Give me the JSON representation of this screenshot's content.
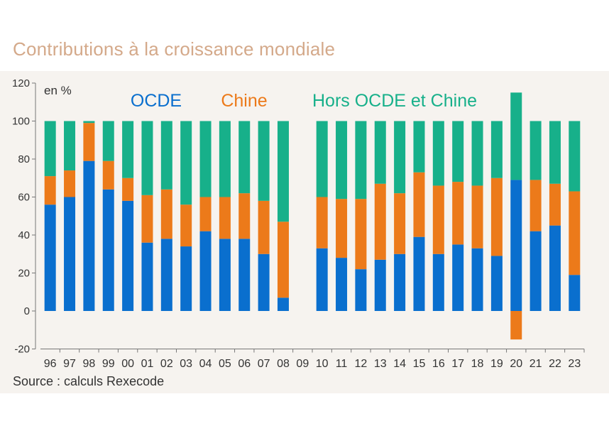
{
  "title": "Contributions à la croissance mondiale",
  "source": "Source : calculs Rexecode",
  "chart_data": {
    "type": "bar",
    "stacked": true,
    "unit_label": "en %",
    "categories": [
      "96",
      "97",
      "98",
      "99",
      "00",
      "01",
      "02",
      "03",
      "04",
      "05",
      "06",
      "07",
      "08",
      "09",
      "10",
      "11",
      "12",
      "13",
      "14",
      "15",
      "16",
      "17",
      "18",
      "19",
      "20",
      "21",
      "22",
      "23"
    ],
    "series": [
      {
        "name": "OCDE",
        "color": "#0a6fce",
        "values": [
          56,
          60,
          79,
          64,
          58,
          36,
          38,
          34,
          42,
          38,
          38,
          30,
          7,
          null,
          33,
          28,
          22,
          27,
          30,
          39,
          30,
          35,
          33,
          29,
          69,
          42,
          45,
          19
        ]
      },
      {
        "name": "Chine",
        "color": "#ec7a1a",
        "values": [
          15,
          14,
          20,
          15,
          12,
          25,
          26,
          22,
          18,
          22,
          24,
          28,
          40,
          null,
          27,
          31,
          37,
          40,
          32,
          34,
          36,
          33,
          33,
          41,
          -15,
          27,
          22,
          44
        ]
      },
      {
        "name": "Hors OCDE et Chine",
        "color": "#17b08a",
        "values": [
          29,
          26,
          1,
          21,
          30,
          39,
          36,
          44,
          40,
          40,
          38,
          42,
          53,
          null,
          40,
          41,
          41,
          33,
          38,
          27,
          34,
          32,
          34,
          30,
          46,
          31,
          33,
          37
        ]
      }
    ],
    "ylim": [
      -20,
      120
    ],
    "yticks": [
      -20,
      0,
      20,
      40,
      60,
      80,
      100,
      120
    ],
    "grid": false,
    "legend": "top, inline"
  }
}
